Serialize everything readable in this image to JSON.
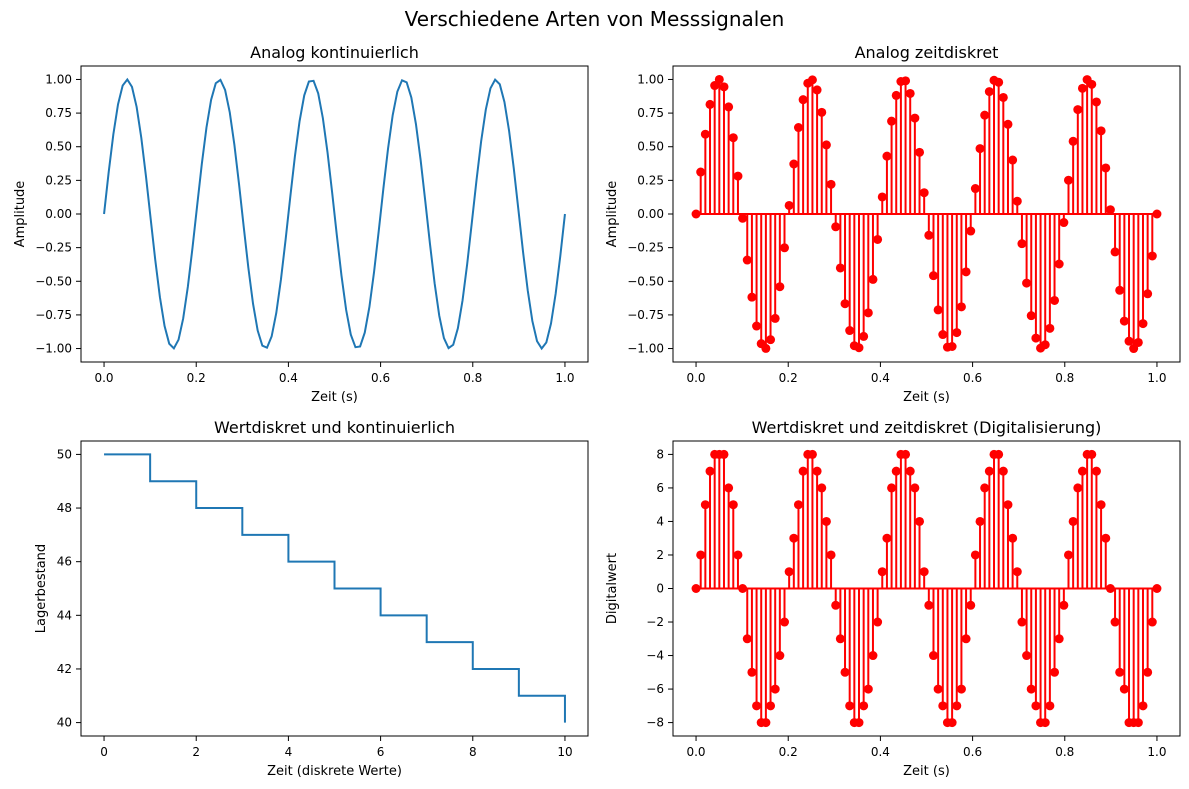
{
  "figure": {
    "suptitle": "Verschiedene Arten von Messsignalen"
  },
  "chart_data": [
    {
      "type": "line",
      "title": "Analog kontinuierlich",
      "xlabel": "Zeit (s)",
      "ylabel": "Amplitude",
      "signal": {
        "function": "sin",
        "frequency_hz": 5,
        "amplitude": 1,
        "t_start": 0,
        "t_end": 1,
        "samples": 100
      },
      "xlim": [
        -0.05,
        1.05
      ],
      "ylim": [
        -1.1,
        1.1
      ],
      "xticks": [
        0.0,
        0.2,
        0.4,
        0.6,
        0.8,
        1.0
      ],
      "xtick_labels": [
        "0.0",
        "0.2",
        "0.4",
        "0.6",
        "0.8",
        "1.0"
      ],
      "yticks": [
        -1.0,
        -0.75,
        -0.5,
        -0.25,
        0.0,
        0.25,
        0.5,
        0.75,
        1.0
      ],
      "ytick_labels": [
        "−1.00",
        "−0.75",
        "−0.50",
        "−0.25",
        "0.00",
        "0.25",
        "0.50",
        "0.75",
        "1.00"
      ],
      "color": "#1f77b4",
      "grid": false
    },
    {
      "type": "stem",
      "title": "Analog zeitdiskret",
      "xlabel": "Zeit (s)",
      "ylabel": "Amplitude",
      "signal": {
        "function": "sin",
        "frequency_hz": 5,
        "amplitude": 1,
        "t_start": 0,
        "t_end": 1,
        "samples": 100
      },
      "xlim": [
        -0.05,
        1.05
      ],
      "ylim": [
        -1.1,
        1.1
      ],
      "xticks": [
        0.0,
        0.2,
        0.4,
        0.6,
        0.8,
        1.0
      ],
      "xtick_labels": [
        "0.0",
        "0.2",
        "0.4",
        "0.6",
        "0.8",
        "1.0"
      ],
      "yticks": [
        -1.0,
        -0.75,
        -0.5,
        -0.25,
        0.0,
        0.25,
        0.5,
        0.75,
        1.0
      ],
      "ytick_labels": [
        "−1.00",
        "−0.75",
        "−0.50",
        "−0.25",
        "0.00",
        "0.25",
        "0.50",
        "0.75",
        "1.00"
      ],
      "color": "#ff0000",
      "grid": false
    },
    {
      "type": "step",
      "title": "Wertdiskret und kontinuierlich",
      "xlabel": "Zeit (diskrete Werte)",
      "ylabel": "Lagerbestand",
      "x": [
        0,
        1,
        2,
        3,
        4,
        5,
        6,
        7,
        8,
        9,
        10
      ],
      "y": [
        50,
        49,
        48,
        47,
        46,
        45,
        44,
        43,
        42,
        41,
        40
      ],
      "xlim": [
        -0.5,
        10.5
      ],
      "ylim": [
        39.5,
        50.5
      ],
      "xticks": [
        0,
        2,
        4,
        6,
        8,
        10
      ],
      "xtick_labels": [
        "0",
        "2",
        "4",
        "6",
        "8",
        "10"
      ],
      "yticks": [
        40,
        42,
        44,
        46,
        48,
        50
      ],
      "ytick_labels": [
        "40",
        "42",
        "44",
        "46",
        "48",
        "50"
      ],
      "color": "#1f77b4",
      "grid": false
    },
    {
      "type": "stem",
      "title": "Wertdiskret und zeitdiskret (Digitalisierung)",
      "xlabel": "Zeit (s)",
      "ylabel": "Digitalwert",
      "signal": {
        "function": "sin",
        "frequency_hz": 5,
        "amplitude": 8,
        "t_start": 0,
        "t_end": 1,
        "samples": 100,
        "quantization": "round"
      },
      "xlim": [
        -0.05,
        1.05
      ],
      "ylim": [
        -8.8,
        8.8
      ],
      "xticks": [
        0.0,
        0.2,
        0.4,
        0.6,
        0.8,
        1.0
      ],
      "xtick_labels": [
        "0.0",
        "0.2",
        "0.4",
        "0.6",
        "0.8",
        "1.0"
      ],
      "yticks": [
        -8,
        -6,
        -4,
        -2,
        0,
        2,
        4,
        6,
        8
      ],
      "ytick_labels": [
        "−8",
        "−6",
        "−4",
        "−2",
        "0",
        "2",
        "4",
        "6",
        "8"
      ],
      "color": "#ff0000",
      "grid": false
    }
  ]
}
